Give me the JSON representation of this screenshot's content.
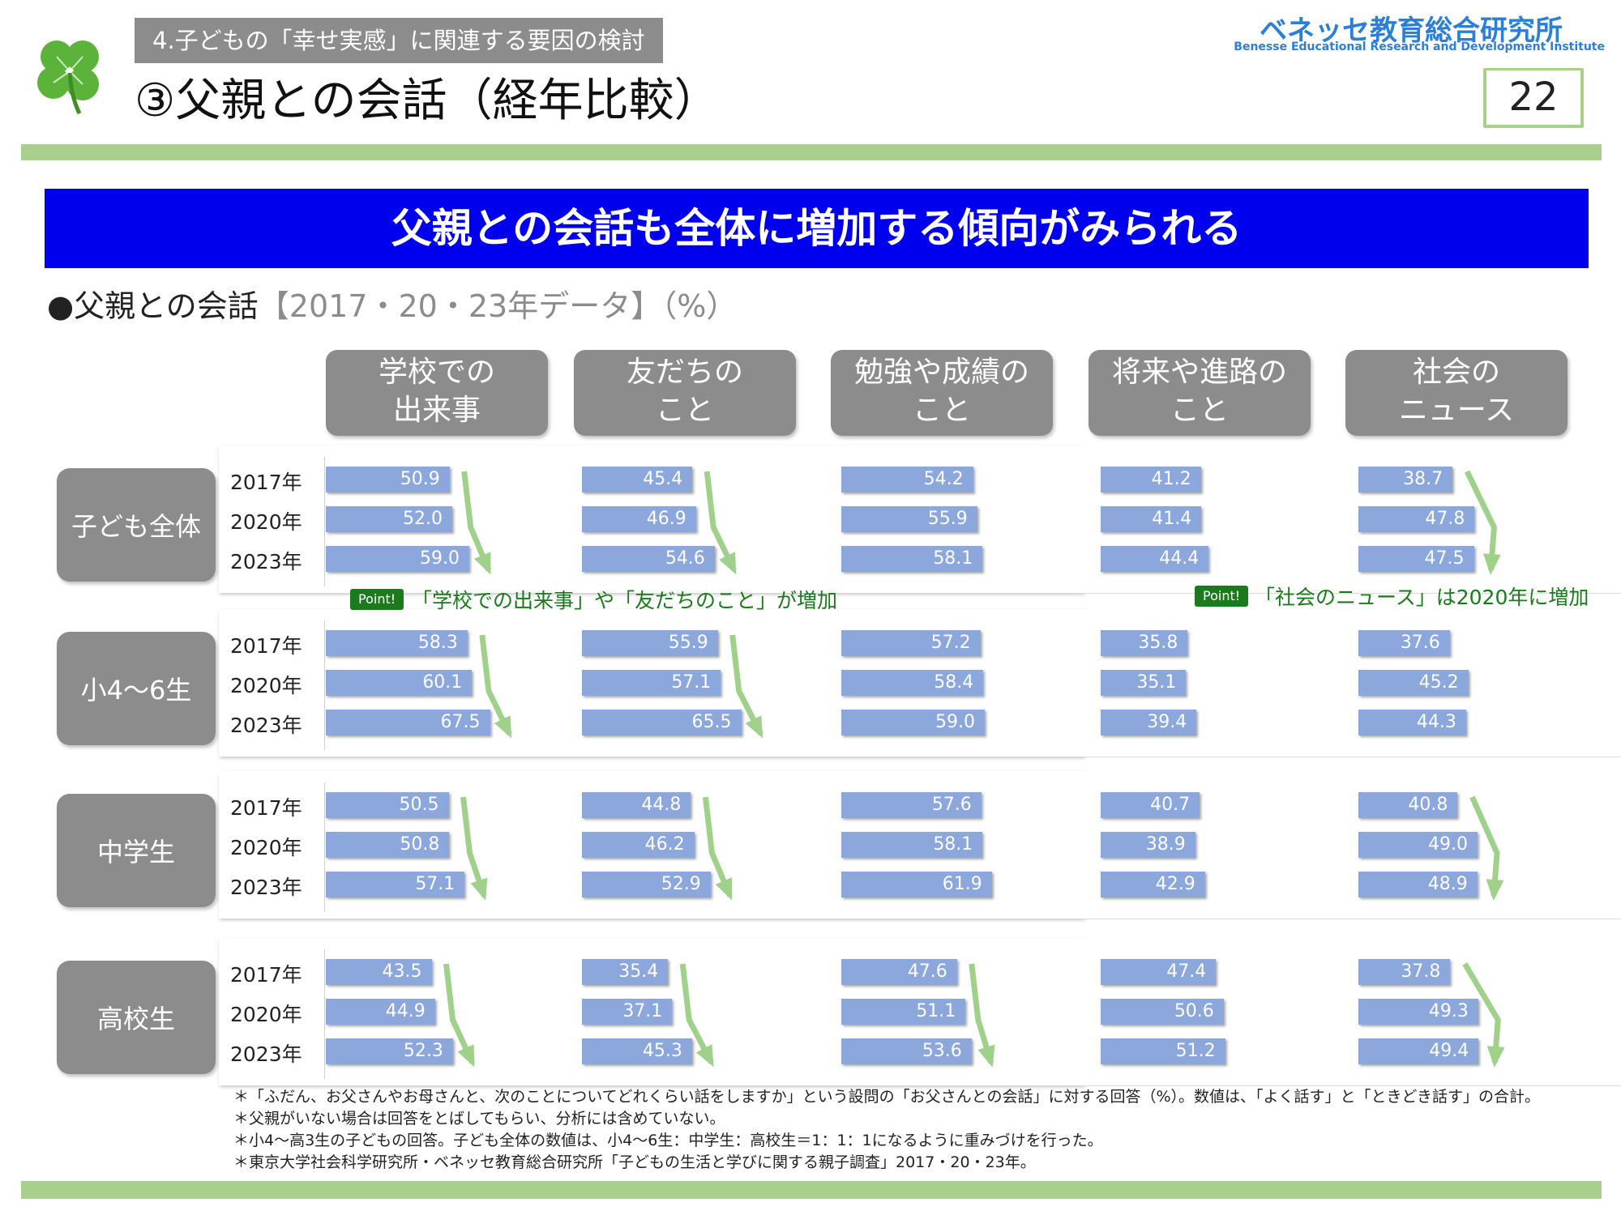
{
  "header": {
    "section_label": "4.子どもの「幸せ実感」に関連する要因の検討",
    "title": "③父親との会話（経年比較）",
    "brand_name": "ベネッセ教育総合研究所",
    "brand_sub": "Benesse Educational Research and Development Institute",
    "page_number": "22",
    "logo_icon": "clover-icon"
  },
  "headline": "父親との会話も全体に増加する傾向がみられる",
  "subtitle": {
    "bullet": "●",
    "main": "父親との会話",
    "bracket": "【2017・20・23年データ】（%）"
  },
  "points": [
    {
      "badge": "Point!",
      "text": "「学校での出来事」や「友だちのこと」が増加"
    },
    {
      "badge": "Point!",
      "text": "「社会のニュース」は2020年に増加"
    }
  ],
  "notes": [
    "＊「ふだん、お父さんやお母さんと、次のことについてどれくらい話をしますか」という設問の「お父さんとの会話」に対する回答（%）。数値は、「よく話す」と「ときどき話す」の合計。",
    "＊父親がいない場合は回答をとばしてもらい、分析には含めていない。",
    "＊小4〜高3生の子どもの回答。子ども全体の数値は、小4〜6生：中学生：高校生＝1：1：1になるように重みづけを行った。",
    "＊東京大学社会科学研究所・ベネッセ教育総合研究所「子どもの生活と学びに関する親子調査」2017・20・23年。"
  ],
  "colors": {
    "bar": "#8ba7dc",
    "arrow": "#9fd18b",
    "banner": "#0000ee",
    "label_bg": "#8c8c8c",
    "rule": "#a9cf8d",
    "point": "#1b7a1b"
  },
  "chart_data": {
    "type": "bar",
    "orientation": "horizontal",
    "years": [
      "2017年",
      "2020年",
      "2023年"
    ],
    "columns": [
      {
        "label": "学校での\n出来事"
      },
      {
        "label": "友だちの\nこと"
      },
      {
        "label": "勉強や成績の\nこと"
      },
      {
        "label": "将来や進路の\nこと"
      },
      {
        "label": "社会の\nニュース"
      }
    ],
    "groups": [
      {
        "label": "子ども全体",
        "values": [
          [
            50.9,
            52.0,
            59.0
          ],
          [
            45.4,
            46.9,
            54.6
          ],
          [
            54.2,
            55.9,
            58.1
          ],
          [
            41.2,
            41.4,
            44.4
          ],
          [
            38.7,
            47.8,
            47.5
          ]
        ]
      },
      {
        "label": "小4〜6生",
        "values": [
          [
            58.3,
            60.1,
            67.5
          ],
          [
            55.9,
            57.1,
            65.5
          ],
          [
            57.2,
            58.4,
            59.0
          ],
          [
            35.8,
            35.1,
            39.4
          ],
          [
            37.6,
            45.2,
            44.3
          ]
        ]
      },
      {
        "label": "中学生",
        "values": [
          [
            50.5,
            50.8,
            57.1
          ],
          [
            44.8,
            46.2,
            52.9
          ],
          [
            57.6,
            58.1,
            61.9
          ],
          [
            40.7,
            38.9,
            42.9
          ],
          [
            40.8,
            49.0,
            48.9
          ]
        ]
      },
      {
        "label": "高校生",
        "values": [
          [
            43.5,
            44.9,
            52.3
          ],
          [
            35.4,
            37.1,
            45.3
          ],
          [
            47.6,
            51.1,
            53.6
          ],
          [
            47.4,
            50.6,
            51.2
          ],
          [
            37.8,
            49.3,
            49.4
          ]
        ]
      }
    ],
    "arrows": [
      [
        [
          0,
          0
        ],
        [
          0,
          1
        ],
        [
          0,
          4
        ]
      ],
      [
        [
          1,
          0
        ],
        [
          1,
          1
        ]
      ],
      [
        [
          2,
          0
        ],
        [
          2,
          1
        ],
        [
          2,
          4
        ]
      ],
      [
        [
          3,
          0
        ],
        [
          3,
          1
        ],
        [
          3,
          2
        ],
        [
          3,
          4
        ]
      ]
    ],
    "arrow_meaning": "increase"
  }
}
